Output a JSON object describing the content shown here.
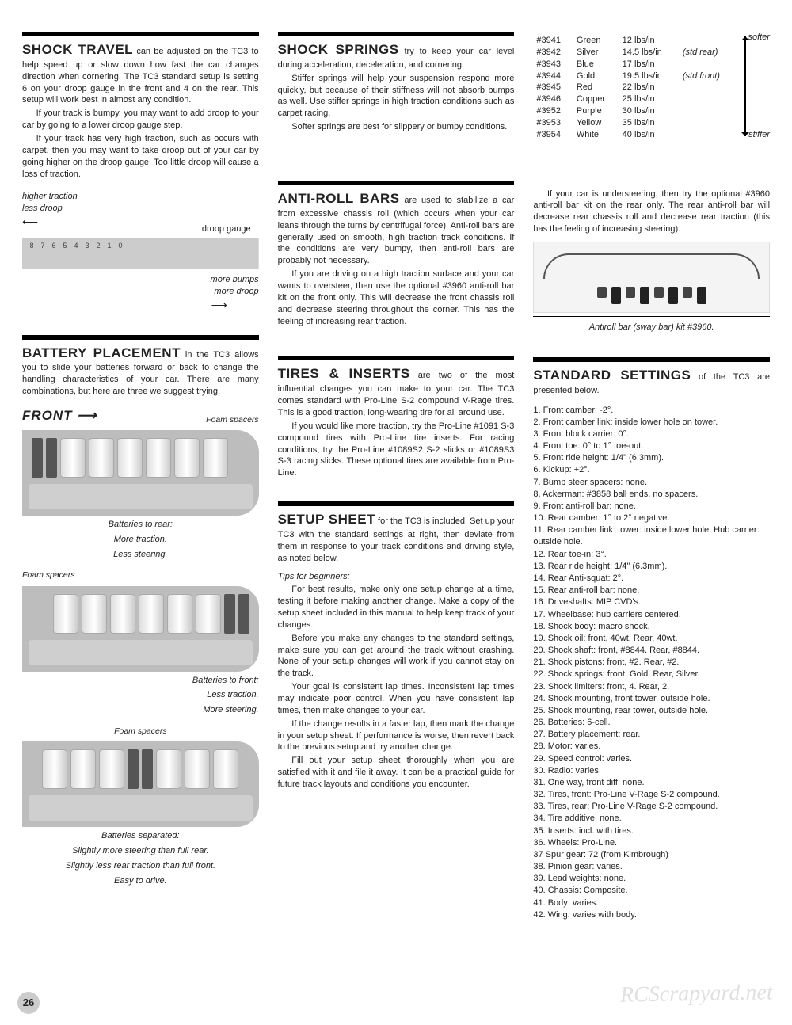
{
  "page_number": "26",
  "watermark": "RCScrapyard.net",
  "col1": {
    "shocktravel": {
      "heading": "SHOCK TRAVEL",
      "lead": " can be adjusted on the TC3 to help speed up or slow down how fast the car changes direction when cornering. The TC3 standard setup is setting 6 on your droop gauge in the front and 4 on the rear. This setup will work best in almost any condition.",
      "p2": "If your track is bumpy, you may want to add droop to your car by going to a lower droop gauge step.",
      "p3": "If your track has very high traction, such as occurs with carpet, then you may want to take droop out of your car by going higher on the droop gauge. Too little droop will cause a loss of traction.",
      "gauge_top1": "higher traction",
      "gauge_top2": "less droop",
      "gauge_label": "droop gauge",
      "gauge_steps": [
        "8",
        "7",
        "6",
        "5",
        "4",
        "3",
        "2",
        "1",
        "0"
      ],
      "gauge_bot1": "more bumps",
      "gauge_bot2": "more droop"
    },
    "battery": {
      "heading": "BATTERY PLACEMENT",
      "lead": " in the TC3 allows you to slide your batteries forward or back to change the handling characteristics of your car. There are many combinations, but here are three we suggest trying.",
      "front_label": "FRONT",
      "foam_label": "Foam spacers",
      "cap1a": "Batteries to rear:",
      "cap1b": "More traction.",
      "cap1c": "Less steering.",
      "cap2a": "Batteries to front:",
      "cap2b": "Less traction.",
      "cap2c": "More steering.",
      "cap3a": "Batteries separated:",
      "cap3b": "Slightly more steering than full rear.",
      "cap3c": "Slightly less rear traction than full front.",
      "cap3d": "Easy to drive."
    }
  },
  "col2": {
    "shocksprings": {
      "heading": "SHOCK SPRINGS",
      "lead": " try to keep your car level during acceleration, deceleration, and cornering.",
      "p2": "Stiffer springs will help your suspension respond more quickly, but because of their stiffness will not absorb bumps as well. Use stiffer springs in high traction conditions such as carpet racing.",
      "p3": "Softer springs are best for slippery or bumpy conditions."
    },
    "antiroll": {
      "heading": "ANTI-ROLL BARS",
      "lead": " are used to stabilize a car from excessive chassis roll (which occurs when your car leans through the turns by centrifugal force). Anti-roll bars are generally used on smooth, high traction track conditions. If the conditions are very bumpy, then anti-roll bars are probably not necessary.",
      "p2": "If you are driving on a high traction surface and your car wants to oversteer, then use the optional #3960 anti-roll bar kit on the front only. This will decrease the front chassis roll and decrease steering throughout the corner. This has the feeling of increasing rear traction."
    },
    "tires": {
      "heading": "TIRES & INSERTS",
      "lead": " are two of the most influential changes you can make to your car. The TC3 comes standard with Pro-Line S-2 compound V-Rage tires. This is a good traction, long-wearing tire for all around use.",
      "p2": "If you would like more traction, try the Pro-Line #1091 S-3 compound tires with Pro-Line tire inserts. For racing conditions, try the Pro-Line #1089S2 S-2 slicks or #1089S3 S-3 racing slicks. These optional tires are available from Pro-Line."
    },
    "setup": {
      "heading": "SETUP SHEET",
      "lead": " for the TC3 is included. Set up your TC3  with the standard settings at right, then deviate from them in response to your track conditions and driving style, as noted below.",
      "tips_label": "Tips for beginners:",
      "p2": "For best results, make only one setup change at a time, testing it before making another change. Make a copy of the setup sheet included in this manual to help keep track of your changes.",
      "p3": "Before you make any changes to the standard settings, make sure you can get around the track without crashing. None of your setup changes will work if you cannot stay on the track.",
      "p4": "Your goal is consistent lap times. Inconsistent lap times may indicate poor control. When you have consistent lap times, then make changes to your car.",
      "p5": "If the change results in a faster lap, then mark the change in your setup sheet. If performance is worse, then revert back to the previous setup and try another change.",
      "p6": "Fill out your setup sheet thoroughly when you are satisfied with it and file it away. It can be a practical guide for future track layouts and conditions you encounter."
    }
  },
  "col3": {
    "springs": {
      "softer": "softer",
      "stiffer": "stiffer",
      "rows": [
        {
          "num": "#3941",
          "color": "Green",
          "rate": "12 lbs/in",
          "note": ""
        },
        {
          "num": "#3942",
          "color": "Silver",
          "rate": "14.5 lbs/in",
          "note": "(std rear)"
        },
        {
          "num": "#3943",
          "color": "Blue",
          "rate": "17 lbs/in",
          "note": ""
        },
        {
          "num": "#3944",
          "color": "Gold",
          "rate": "19.5 lbs/in",
          "note": "(std front)"
        },
        {
          "num": "#3945",
          "color": "Red",
          "rate": "22 lbs/in",
          "note": ""
        },
        {
          "num": "#3946",
          "color": "Copper",
          "rate": "25 lbs/in",
          "note": ""
        },
        {
          "num": "#3952",
          "color": "Purple",
          "rate": "30 lbs/in",
          "note": ""
        },
        {
          "num": "#3953",
          "color": "Yellow",
          "rate": "35 lbs/in",
          "note": ""
        },
        {
          "num": "#3954",
          "color": "White",
          "rate": "40 lbs/in",
          "note": ""
        }
      ]
    },
    "antiroll2": {
      "p1": "If your car is understeering, then try the optional #3960 anti-roll bar kit on the rear only. The rear anti-roll bar will decrease rear chassis roll and decrease rear traction (this has the feeling of increasing steering).",
      "caption": "Antiroll bar (sway bar) kit #3960."
    },
    "standard": {
      "heading": "STANDARD SETTINGS",
      "lead": " of the TC3 are presented below.",
      "items": [
        "1. Front camber: -2°.",
        "2. Front camber link: inside lower hole on tower.",
        "3. Front block carrier: 0°.",
        "4. Front toe: 0° to 1° toe-out.",
        "5. Front ride height: 1/4\" (6.3mm).",
        "6. Kickup: +2°.",
        "7. Bump steer spacers: none.",
        "8. Ackerman: #3858 ball ends, no spacers.",
        "9. Front anti-roll bar: none.",
        "10. Rear camber: 1° to 2° negative.",
        "11. Rear camber link: tower: inside lower hole. Hub carrier: outside hole.",
        "12. Rear toe-in: 3°.",
        "13. Rear ride height: 1/4\" (6.3mm).",
        "14. Rear Anti-squat: 2°.",
        "15. Rear anti-roll bar: none.",
        "16. Driveshafts: MIP CVD's.",
        "17. Wheelbase: hub carriers centered.",
        "18. Shock body: macro shock.",
        "19. Shock oil: front, 40wt. Rear, 40wt.",
        "20. Shock shaft: front, #8844. Rear, #8844.",
        "21. Shock pistons: front, #2. Rear, #2.",
        "22. Shock springs: front, Gold. Rear, Silver.",
        "23. Shock limiters: front, 4. Rear, 2.",
        "24. Shock mounting, front tower, outside hole.",
        "25. Shock mounting, rear tower, outside hole.",
        "26. Batteries: 6-cell.",
        "27. Battery placement: rear.",
        "28. Motor: varies.",
        "29. Speed control: varies.",
        "30. Radio: varies.",
        "31. One way, front diff: none.",
        "32. Tires, front: Pro-Line V-Rage S-2 compound.",
        "33. Tires, rear: Pro-Line V-Rage S-2 compound.",
        "34. Tire additive: none.",
        "35. Inserts: incl. with tires.",
        "36. Wheels: Pro-Line.",
        "37 Spur gear: 72 (from Kimbrough)",
        "38. Pinion gear: varies.",
        "39. Lead weights: none.",
        "40. Chassis: Composite.",
        "41. Body: varies.",
        "42. Wing: varies with body."
      ]
    }
  }
}
